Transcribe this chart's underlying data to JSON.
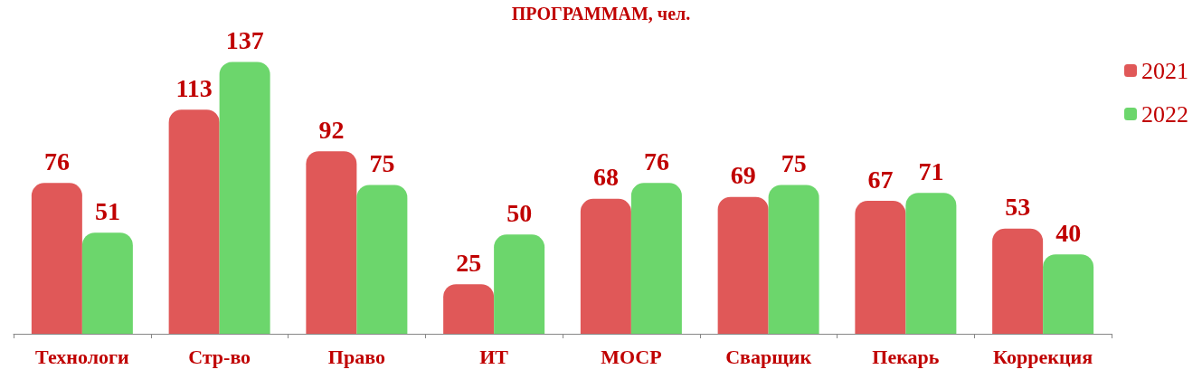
{
  "chart_data": {
    "type": "bar",
    "title": "ПРОГРАММАМ, чел.",
    "categories": [
      "Технологи",
      "Стр-во",
      "Право",
      "ИТ",
      "МОСР",
      "Сварщик",
      "Пекарь",
      "Коррекция"
    ],
    "series": [
      {
        "name": "2021",
        "color": "#e05858",
        "values": [
          76,
          113,
          92,
          25,
          68,
          69,
          67,
          53
        ]
      },
      {
        "name": "2022",
        "color": "#6cd66c",
        "values": [
          51,
          137,
          75,
          50,
          76,
          75,
          71,
          40
        ]
      }
    ],
    "data_labels": true,
    "legend": "top right"
  }
}
